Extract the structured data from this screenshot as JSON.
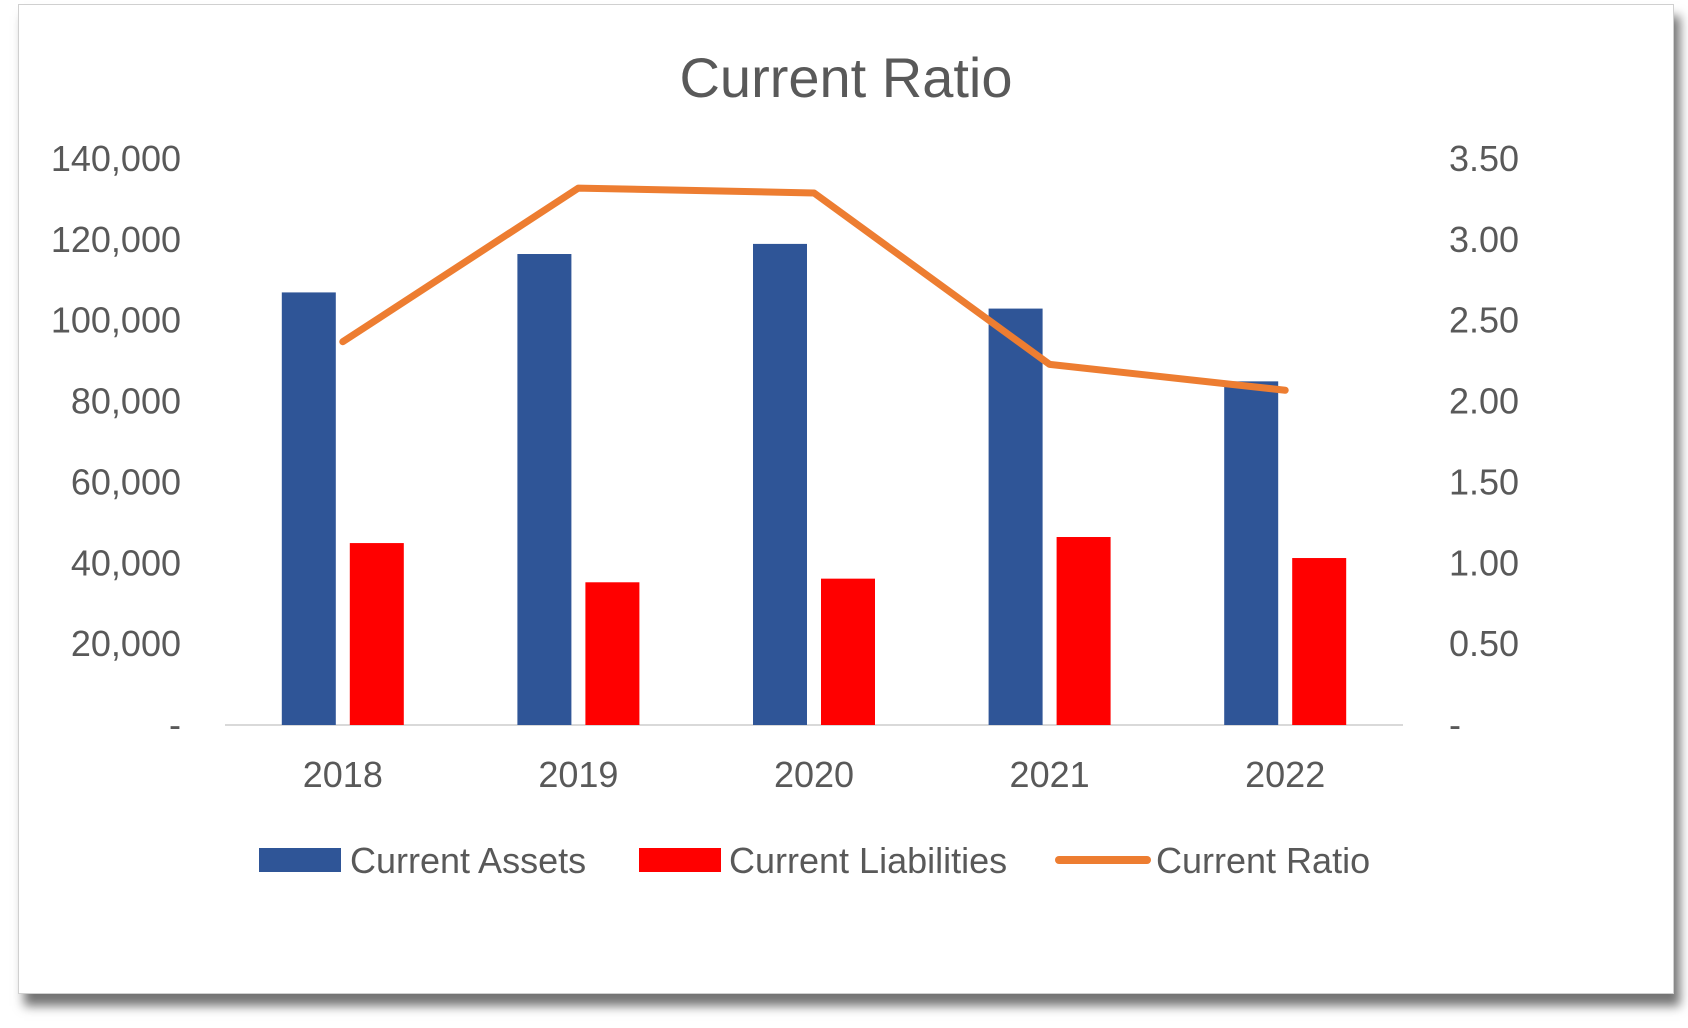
{
  "chart_data": {
    "type": "bar",
    "title": "Current Ratio",
    "categories": [
      "2018",
      "2019",
      "2020",
      "2021",
      "2022"
    ],
    "series": [
      {
        "name": "Current Assets",
        "type": "bar",
        "axis": "left",
        "color": "#2F5597",
        "values": [
          107000,
          116500,
          119000,
          103000,
          85000
        ]
      },
      {
        "name": "Current Liabilities",
        "type": "bar",
        "axis": "left",
        "color": "#FF0000",
        "values": [
          45000,
          35300,
          36200,
          46500,
          41300
        ]
      },
      {
        "name": "Current Ratio",
        "type": "line",
        "axis": "right",
        "color": "#ED7D31",
        "values": [
          2.37,
          3.32,
          3.29,
          2.23,
          2.07
        ]
      }
    ],
    "y_left": {
      "min": 0,
      "max": 140000,
      "ticks": [
        "-",
        "20,000",
        "40,000",
        "60,000",
        "80,000",
        "100,000",
        "120,000",
        "140,000"
      ]
    },
    "y_right": {
      "min": 0,
      "max": 3.5,
      "ticks": [
        "-",
        "0.50",
        "1.00",
        "1.50",
        "2.00",
        "2.50",
        "3.00",
        "3.50"
      ]
    },
    "grid": false,
    "legend": "bottom"
  }
}
